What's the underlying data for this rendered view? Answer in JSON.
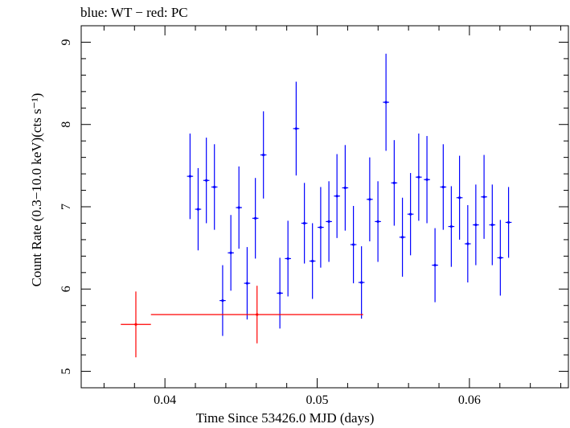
{
  "chart_data": {
    "type": "scatter",
    "title": "blue: WT − red: PC",
    "xlabel": "Time Since 53426.0 MJD (days)",
    "ylabel": "Count Rate (0.3−10.0 keV)(cts s⁻¹)",
    "xlim": [
      0.0345,
      0.0665
    ],
    "ylim": [
      4.8,
      9.2
    ],
    "x_ticks": [
      "0.04",
      "0.05",
      "0.06"
    ],
    "y_ticks": [
      "5",
      "6",
      "7",
      "8",
      "9"
    ],
    "grid": false,
    "series": [
      {
        "name": "WT",
        "color": "#0000ff",
        "points": [
          {
            "x": 0.04165,
            "y": 7.37,
            "xerr": 0.0002,
            "yerr": 0.52
          },
          {
            "x": 0.04218,
            "y": 6.97,
            "xerr": 0.0002,
            "yerr": 0.5
          },
          {
            "x": 0.04272,
            "y": 7.32,
            "xerr": 0.0002,
            "yerr": 0.52
          },
          {
            "x": 0.04325,
            "y": 7.24,
            "xerr": 0.0002,
            "yerr": 0.52
          },
          {
            "x": 0.04379,
            "y": 5.86,
            "xerr": 0.0002,
            "yerr": 0.43
          },
          {
            "x": 0.04433,
            "y": 6.44,
            "xerr": 0.0002,
            "yerr": 0.46
          },
          {
            "x": 0.04486,
            "y": 6.99,
            "xerr": 0.0002,
            "yerr": 0.5
          },
          {
            "x": 0.0454,
            "y": 6.07,
            "xerr": 0.0002,
            "yerr": 0.44
          },
          {
            "x": 0.04594,
            "y": 6.86,
            "xerr": 0.0002,
            "yerr": 0.49
          },
          {
            "x": 0.04647,
            "y": 7.63,
            "xerr": 0.0002,
            "yerr": 0.53
          },
          {
            "x": 0.04755,
            "y": 5.95,
            "xerr": 0.0002,
            "yerr": 0.43
          },
          {
            "x": 0.04808,
            "y": 6.37,
            "xerr": 0.0002,
            "yerr": 0.46
          },
          {
            "x": 0.04862,
            "y": 7.95,
            "xerr": 0.0002,
            "yerr": 0.57
          },
          {
            "x": 0.04916,
            "y": 6.8,
            "xerr": 0.0002,
            "yerr": 0.49
          },
          {
            "x": 0.04969,
            "y": 6.34,
            "xerr": 0.0002,
            "yerr": 0.46
          },
          {
            "x": 0.05023,
            "y": 6.75,
            "xerr": 0.0002,
            "yerr": 0.49
          },
          {
            "x": 0.05077,
            "y": 6.82,
            "xerr": 0.0002,
            "yerr": 0.49
          },
          {
            "x": 0.0513,
            "y": 7.13,
            "xerr": 0.0002,
            "yerr": 0.51
          },
          {
            "x": 0.05184,
            "y": 7.23,
            "xerr": 0.0002,
            "yerr": 0.52
          },
          {
            "x": 0.05238,
            "y": 6.54,
            "xerr": 0.0002,
            "yerr": 0.47
          },
          {
            "x": 0.05291,
            "y": 6.08,
            "xerr": 0.0002,
            "yerr": 0.44
          },
          {
            "x": 0.05345,
            "y": 7.09,
            "xerr": 0.0002,
            "yerr": 0.51
          },
          {
            "x": 0.05399,
            "y": 6.82,
            "xerr": 0.0002,
            "yerr": 0.49
          },
          {
            "x": 0.05452,
            "y": 8.27,
            "xerr": 0.0002,
            "yerr": 0.59
          },
          {
            "x": 0.05506,
            "y": 7.29,
            "xerr": 0.0002,
            "yerr": 0.52
          },
          {
            "x": 0.0556,
            "y": 6.63,
            "xerr": 0.0002,
            "yerr": 0.48
          },
          {
            "x": 0.05613,
            "y": 6.91,
            "xerr": 0.0002,
            "yerr": 0.5
          },
          {
            "x": 0.05667,
            "y": 7.36,
            "xerr": 0.0002,
            "yerr": 0.53
          },
          {
            "x": 0.05721,
            "y": 7.33,
            "xerr": 0.0002,
            "yerr": 0.53
          },
          {
            "x": 0.05774,
            "y": 6.29,
            "xerr": 0.0002,
            "yerr": 0.45
          },
          {
            "x": 0.05828,
            "y": 7.24,
            "xerr": 0.0002,
            "yerr": 0.52
          },
          {
            "x": 0.05881,
            "y": 6.76,
            "xerr": 0.0002,
            "yerr": 0.49
          },
          {
            "x": 0.05935,
            "y": 7.11,
            "xerr": 0.0002,
            "yerr": 0.51
          },
          {
            "x": 0.05989,
            "y": 6.55,
            "xerr": 0.0002,
            "yerr": 0.47
          },
          {
            "x": 0.06042,
            "y": 6.78,
            "xerr": 0.0002,
            "yerr": 0.49
          },
          {
            "x": 0.06096,
            "y": 7.12,
            "xerr": 0.0002,
            "yerr": 0.51
          },
          {
            "x": 0.0615,
            "y": 6.78,
            "xerr": 0.0002,
            "yerr": 0.49
          },
          {
            "x": 0.06203,
            "y": 6.38,
            "xerr": 0.0002,
            "yerr": 0.46
          },
          {
            "x": 0.06257,
            "y": 6.81,
            "xerr": 0.0002,
            "yerr": 0.43
          }
        ]
      },
      {
        "name": "PC",
        "color": "#ff0000",
        "points": [
          {
            "x": 0.03809,
            "y": 5.57,
            "xerr": 0.00099,
            "yerr": 0.4
          },
          {
            "x": 0.04605,
            "y": 5.69,
            "xerr": 0.00697,
            "yerr": 0.35
          }
        ]
      }
    ]
  }
}
